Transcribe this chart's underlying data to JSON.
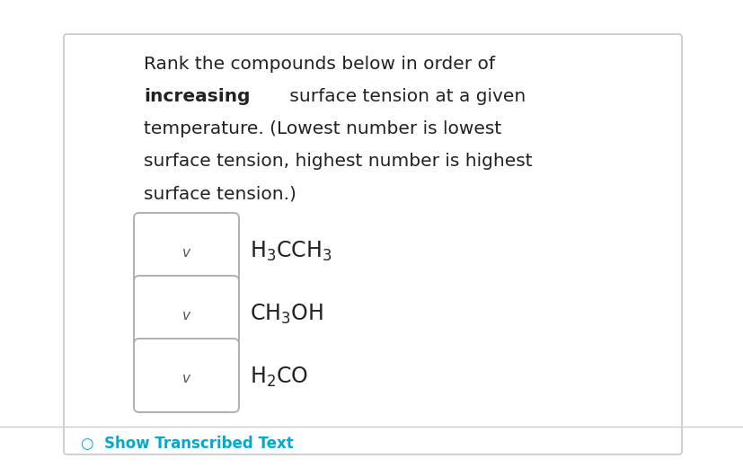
{
  "background_color": "#ffffff",
  "border_color": "#c8c8c8",
  "text_color": "#222222",
  "font_size_body": 14.5,
  "font_size_compound": 17,
  "bottom_text": "Show Transcribed Text",
  "bottom_text_color": "#00aacc",
  "bottom_bar_color": "#cccccc",
  "box_edge_color": "#b0b0b0",
  "chevron_color": "#555555",
  "compounds": [
    "H$_3$CCH$_3$",
    "CH$_3$OH",
    "H$_2$CO"
  ]
}
